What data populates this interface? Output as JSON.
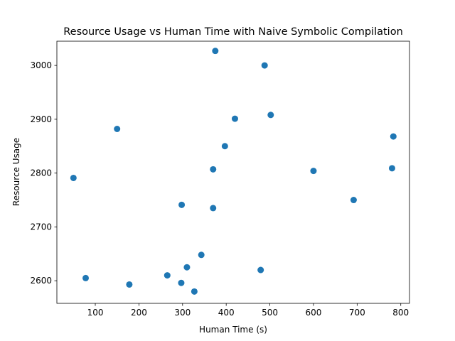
{
  "chart_data": {
    "type": "scatter",
    "title": "Resource Usage vs Human Time with Naive Symbolic Compilation",
    "xlabel": "Human Time (s)",
    "ylabel": "Resource Usage",
    "xlim": [
      12,
      820
    ],
    "ylim": [
      2558,
      3045
    ],
    "xticks": [
      100,
      200,
      300,
      400,
      500,
      600,
      700,
      800
    ],
    "yticks": [
      2600,
      2700,
      2800,
      2900,
      3000
    ],
    "grid": false,
    "legend": "none",
    "marker_color": "#1f77b4",
    "points": [
      {
        "x": 375,
        "y": 3027
      },
      {
        "x": 488,
        "y": 3000
      },
      {
        "x": 502,
        "y": 2908
      },
      {
        "x": 420,
        "y": 2901
      },
      {
        "x": 150,
        "y": 2882
      },
      {
        "x": 783,
        "y": 2868
      },
      {
        "x": 397,
        "y": 2850
      },
      {
        "x": 370,
        "y": 2807
      },
      {
        "x": 600,
        "y": 2804
      },
      {
        "x": 780,
        "y": 2809
      },
      {
        "x": 50,
        "y": 2791
      },
      {
        "x": 692,
        "y": 2750
      },
      {
        "x": 298,
        "y": 2741
      },
      {
        "x": 370,
        "y": 2735
      },
      {
        "x": 343,
        "y": 2648
      },
      {
        "x": 310,
        "y": 2625
      },
      {
        "x": 479,
        "y": 2620
      },
      {
        "x": 265,
        "y": 2610
      },
      {
        "x": 78,
        "y": 2605
      },
      {
        "x": 297,
        "y": 2596
      },
      {
        "x": 178,
        "y": 2593
      },
      {
        "x": 327,
        "y": 2580
      }
    ]
  }
}
